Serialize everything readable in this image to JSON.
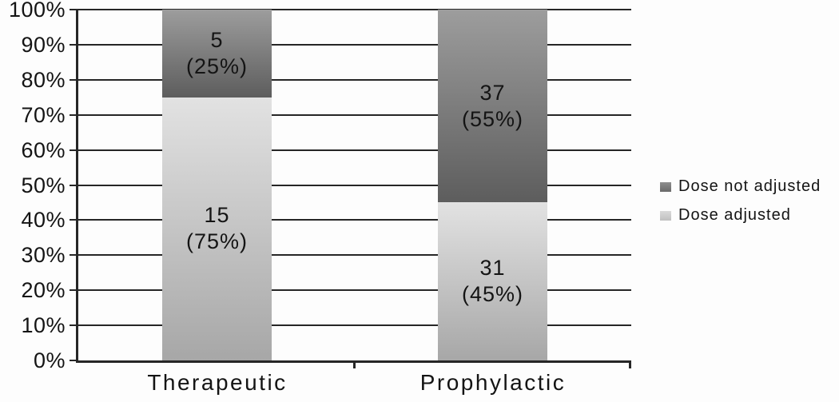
{
  "chart_data": {
    "type": "bar",
    "stacked": true,
    "stack_mode": "percent",
    "title": "",
    "xlabel": "",
    "ylabel": "",
    "categories": [
      "Therapeutic",
      "Prophylactic"
    ],
    "series": [
      {
        "name": "Dose not adjusted",
        "values": [
          5,
          37
        ],
        "percents": [
          25,
          55
        ],
        "value_labels": [
          "5",
          "37"
        ],
        "percent_labels": [
          "(25%)",
          "(55%)"
        ],
        "color_top": "#9d9d9d",
        "color_bottom": "#5d5d5d"
      },
      {
        "name": "Dose adjusted",
        "values": [
          15,
          31
        ],
        "percents": [
          75,
          45
        ],
        "value_labels": [
          "15",
          "31"
        ],
        "percent_labels": [
          "(75%)",
          "(45%)"
        ],
        "color_top": "#e2e2e2",
        "color_bottom": "#a7a7a7"
      }
    ],
    "y_ticks": [
      "100%",
      "90%",
      "80%",
      "70%",
      "60%",
      "50%",
      "40%",
      "30%",
      "20%",
      "10%",
      "0%"
    ],
    "ylim": [
      0,
      100
    ],
    "grid": true,
    "legend_position": "right",
    "colors": {
      "axis": "#262626",
      "gridline": "#262626",
      "text": "#141414",
      "background": "#ffffff",
      "legend_swatch_dark_top": "#8d8d8d",
      "legend_swatch_dark_bottom": "#696969",
      "legend_swatch_light_top": "#d9d9d9",
      "legend_swatch_light_bottom": "#c0c0c0"
    }
  }
}
